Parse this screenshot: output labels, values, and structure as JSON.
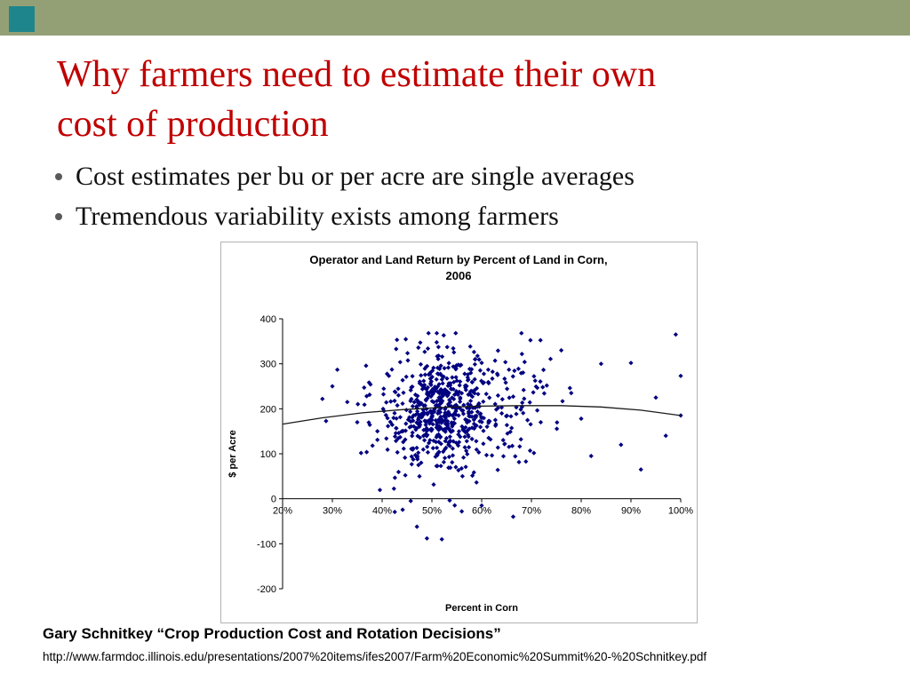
{
  "slide": {
    "title_lines": [
      "Why farmers need to estimate their own",
      "cost of production"
    ],
    "bullets": [
      "Cost estimates per bu or per acre are single averages",
      "Tremendous variability exists among farmers"
    ],
    "footer": {
      "citation": "Gary Schnitkey “Crop Production Cost and Rotation Decisions”",
      "url": "http://www.farmdoc.illinois.edu/presentations/2007%20items/ifes2007/Farm%20Economic%20Summit%20-%20Schnitkey.pdf"
    },
    "colors": {
      "title_red": "#C00000",
      "band_olive": "#93A076",
      "square_teal": "#1E858C",
      "marker_navy": "#000080"
    }
  },
  "chart_data": {
    "type": "scatter",
    "title_lines": [
      "Operator and Land Return by Percent of Land in Corn,",
      "2006"
    ],
    "xlabel": "Percent in Corn",
    "ylabel": "$ per Acre",
    "x_range": [
      20,
      100
    ],
    "y_range": [
      -200,
      400
    ],
    "grid": false,
    "legend": "none",
    "x_ticks": [
      {
        "v": 20,
        "label": "20%"
      },
      {
        "v": 30,
        "label": "30%"
      },
      {
        "v": 40,
        "label": "40%"
      },
      {
        "v": 50,
        "label": "50%"
      },
      {
        "v": 60,
        "label": "60%"
      },
      {
        "v": 70,
        "label": "70%"
      },
      {
        "v": 80,
        "label": "80%"
      },
      {
        "v": 90,
        "label": "90%"
      },
      {
        "v": 100,
        "label": "100%"
      }
    ],
    "y_ticks": [
      {
        "v": 400,
        "label": "400"
      },
      {
        "v": 300,
        "label": "300"
      },
      {
        "v": 200,
        "label": "200"
      },
      {
        "v": 100,
        "label": "100"
      },
      {
        "v": 0,
        "label": "0"
      },
      {
        "v": -100,
        "label": "-100"
      },
      {
        "v": -200,
        "label": "-200"
      }
    ],
    "scatter": {
      "seed": 20061,
      "marker_color": "#000080",
      "marker_shape": "diamond",
      "clusters": [
        {
          "n": 430,
          "cx": 51.5,
          "sx": 4.5,
          "cy": 200,
          "sy": 62
        },
        {
          "n": 150,
          "cx": 52,
          "sx": 9,
          "cy": 188,
          "sy": 78
        },
        {
          "n": 80,
          "cx": 64,
          "sx": 6,
          "cy": 210,
          "sy": 62
        },
        {
          "n": 20,
          "cx": 42,
          "sx": 3,
          "cy": 175,
          "sy": 70
        }
      ],
      "outliers": [
        [
          30,
          250
        ],
        [
          31,
          287
        ],
        [
          33,
          215
        ],
        [
          28,
          222
        ],
        [
          35,
          170
        ],
        [
          47,
          -62
        ],
        [
          49,
          -88
        ],
        [
          52,
          -90
        ],
        [
          56,
          -28
        ],
        [
          60,
          -15
        ],
        [
          76,
          330
        ],
        [
          78,
          235
        ],
        [
          80,
          178
        ],
        [
          82,
          95
        ],
        [
          84,
          300
        ],
        [
          88,
          120
        ],
        [
          90,
          302
        ],
        [
          92,
          65
        ],
        [
          95,
          225
        ],
        [
          97,
          140
        ],
        [
          99,
          365
        ],
        [
          100,
          273
        ],
        [
          100,
          185
        ]
      ]
    },
    "trend_line": {
      "color": "#1a1a1a",
      "points": [
        [
          20,
          166
        ],
        [
          28,
          180
        ],
        [
          36,
          191
        ],
        [
          44,
          198
        ],
        [
          52,
          203
        ],
        [
          60,
          206
        ],
        [
          68,
          207
        ],
        [
          76,
          207
        ],
        [
          84,
          204
        ],
        [
          92,
          197
        ],
        [
          100,
          185
        ]
      ]
    }
  }
}
